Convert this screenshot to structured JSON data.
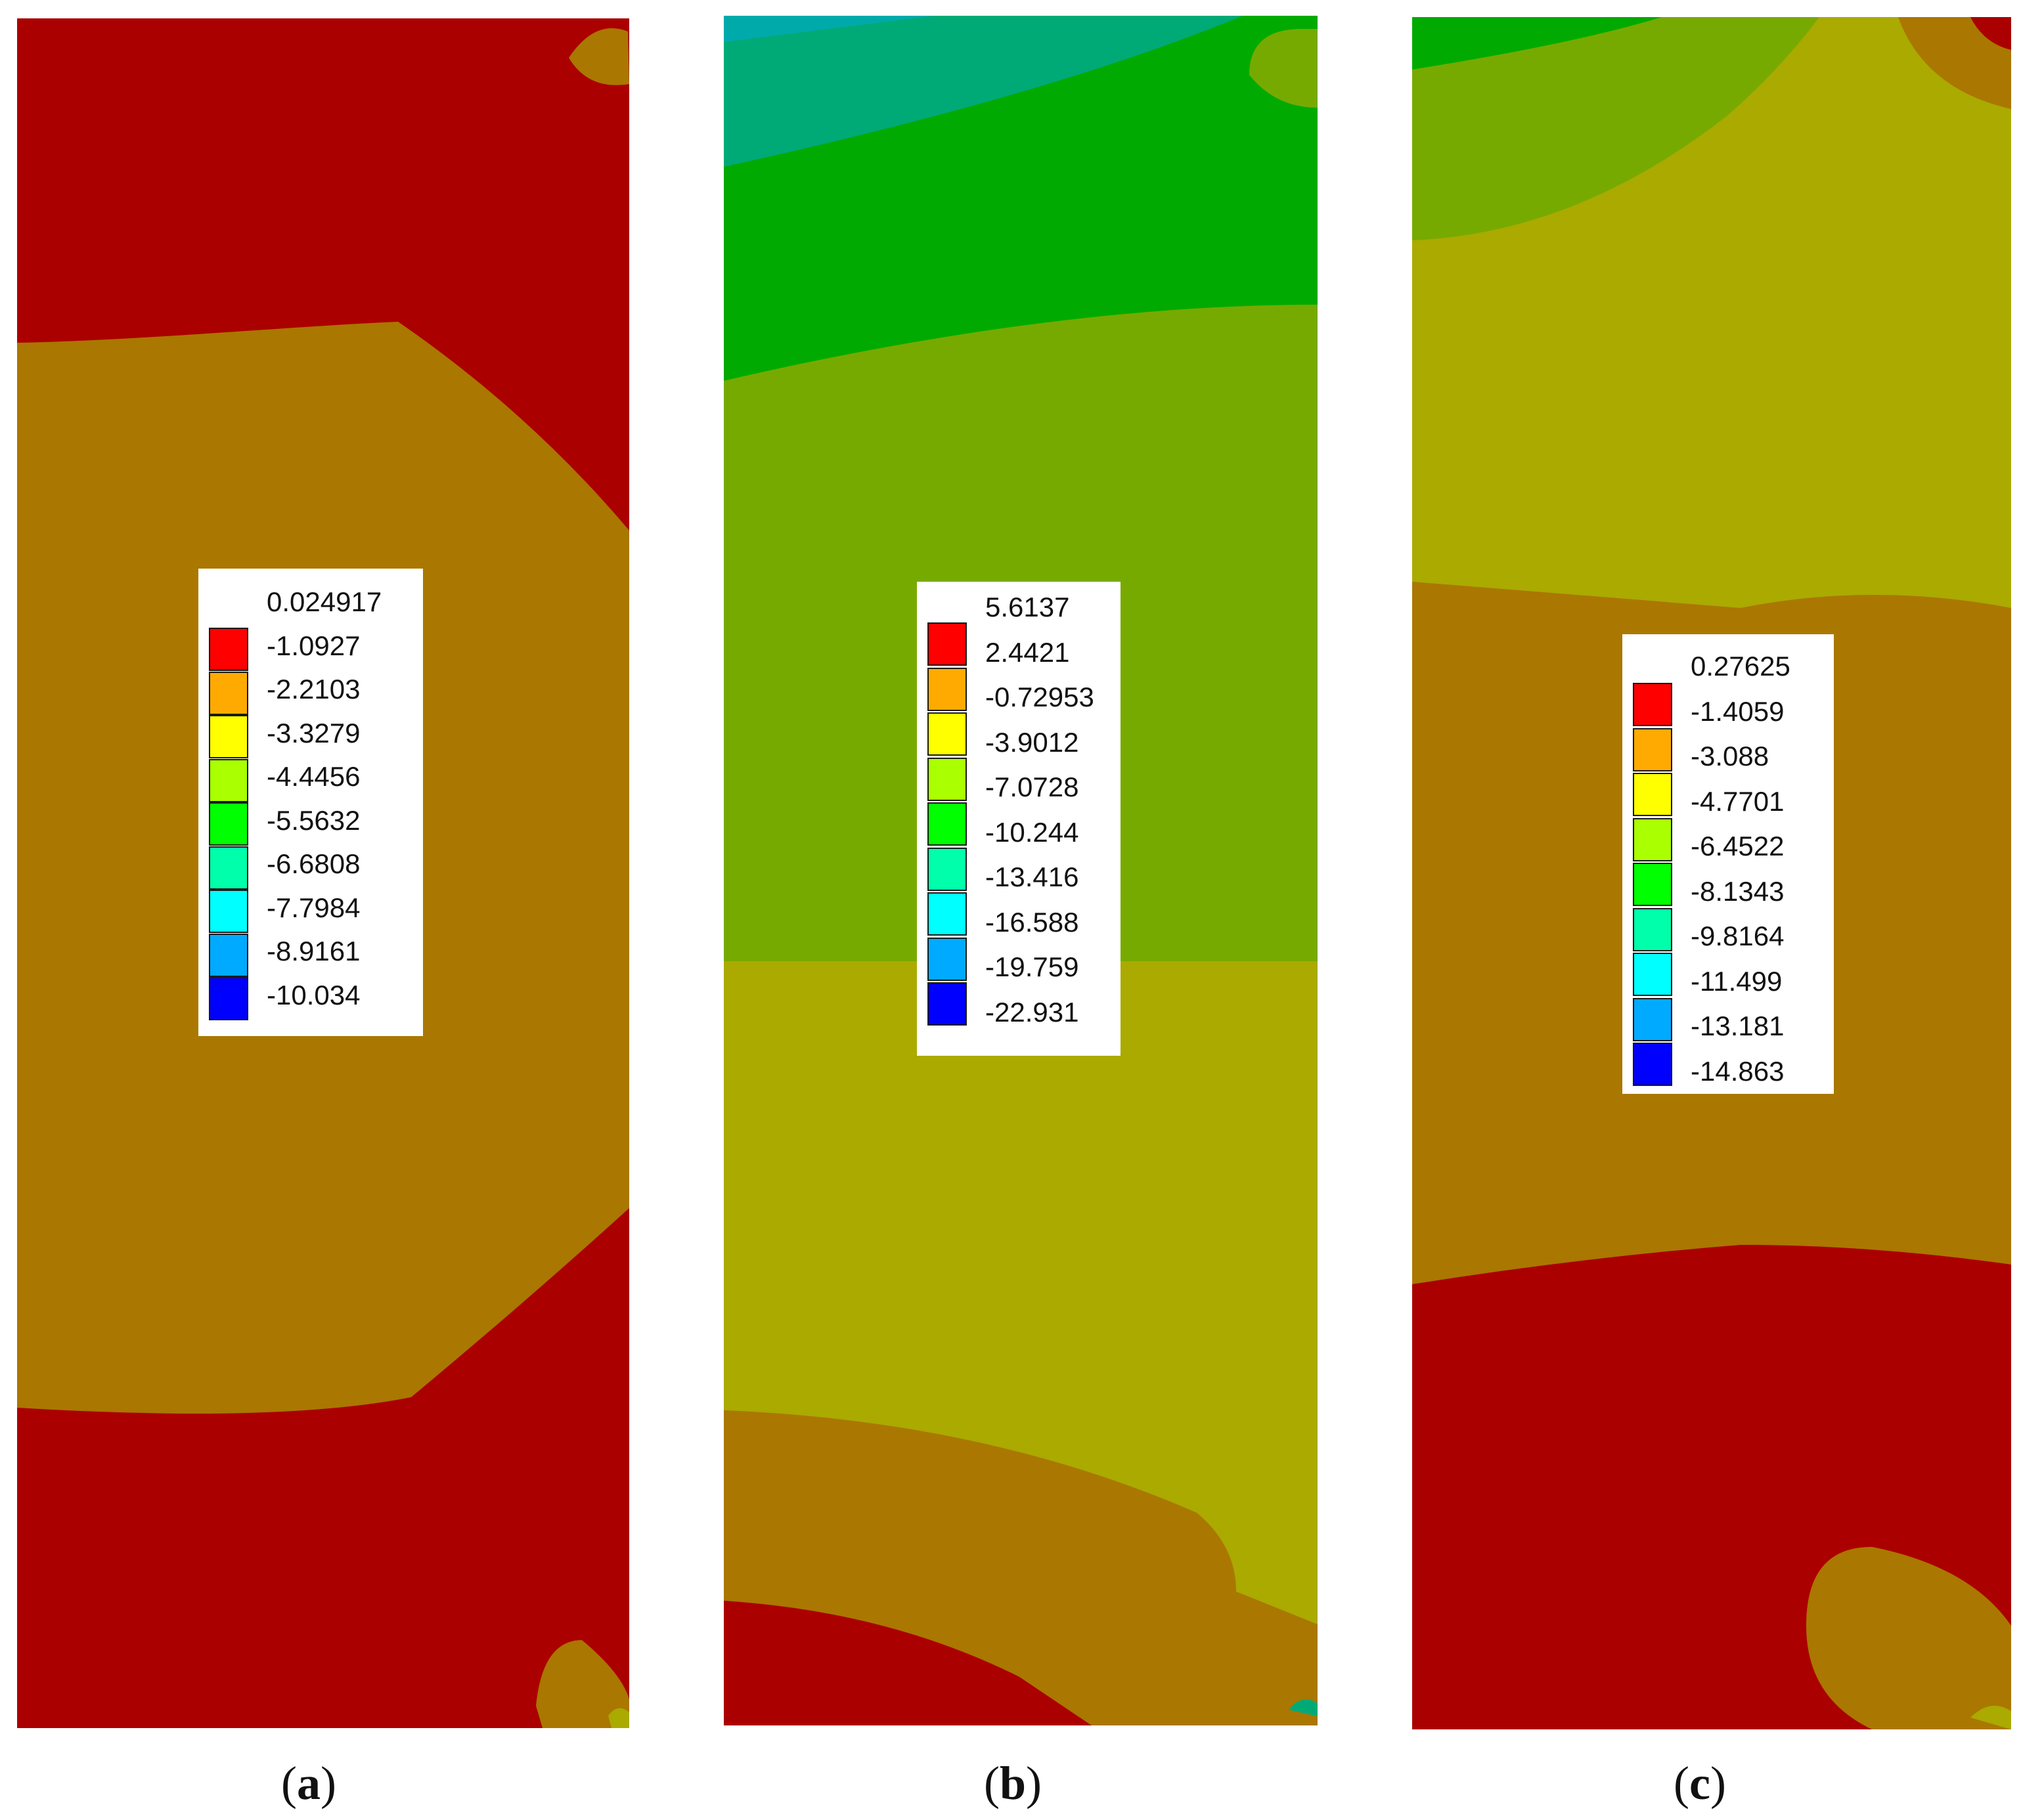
{
  "panels": [
    {
      "id": "a",
      "caption": "a",
      "legend": {
        "values": [
          "0.024917",
          "-1.0927",
          "-2.2103",
          "-3.3279",
          "-4.4456",
          "-5.5632",
          "-6.6808",
          "-7.7984",
          "-8.9161",
          "-10.034"
        ],
        "colors": [
          "#ff0000",
          "#ffaa00",
          "#ffff00",
          "#aaff00",
          "#00ff00",
          "#00ffaa",
          "#00ffff",
          "#00aaff",
          "#0000ff"
        ]
      }
    },
    {
      "id": "b",
      "caption": "b",
      "legend": {
        "values": [
          "5.6137",
          "2.4421",
          "-0.72953",
          "-3.9012",
          "-7.0728",
          "-10.244",
          "-13.416",
          "-16.588",
          "-19.759",
          "-22.931"
        ],
        "colors": [
          "#ff0000",
          "#ffaa00",
          "#ffff00",
          "#aaff00",
          "#00ff00",
          "#00ffaa",
          "#00ffff",
          "#00aaff",
          "#0000ff"
        ]
      }
    },
    {
      "id": "c",
      "caption": "c",
      "legend": {
        "values": [
          "0.27625",
          "-1.4059",
          "-3.088",
          "-4.7701",
          "-6.4522",
          "-8.1343",
          "-9.8164",
          "-11.499",
          "-13.181",
          "-14.863"
        ],
        "colors": [
          "#ff0000",
          "#ffaa00",
          "#ffff00",
          "#aaff00",
          "#00ff00",
          "#00ffaa",
          "#00ffff",
          "#00aaff",
          "#0000ff"
        ]
      }
    }
  ],
  "field_colors": {
    "red": "#aa0000",
    "orange": "#aa7700",
    "olive": "#aaaa00",
    "yellow_green": "#77aa00",
    "green": "#00aa00",
    "teal_green": "#00aa77",
    "teal": "#00aaaa"
  }
}
